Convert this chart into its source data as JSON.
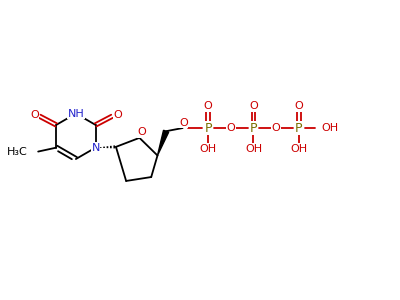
{
  "background_color": "#ffffff",
  "bond_color": "#000000",
  "n_color": "#2222cc",
  "o_color": "#cc0000",
  "p_color": "#7a7000",
  "font_size": 7.5,
  "scale": 1.0,
  "xlim": [
    0,
    10
  ],
  "ylim": [
    0,
    7.5
  ]
}
